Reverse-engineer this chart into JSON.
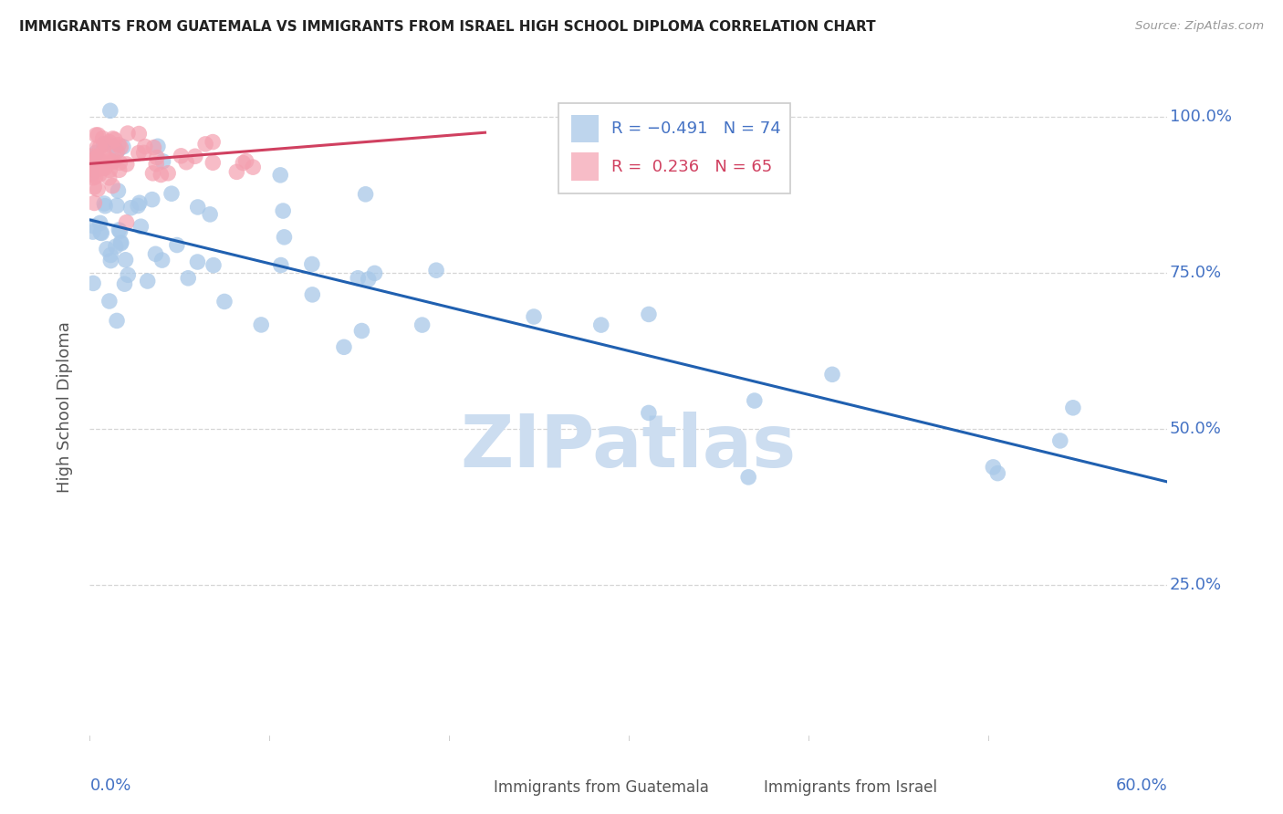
{
  "title": "IMMIGRANTS FROM GUATEMALA VS IMMIGRANTS FROM ISRAEL HIGH SCHOOL DIPLOMA CORRELATION CHART",
  "source": "Source: ZipAtlas.com",
  "ylabel": "High School Diploma",
  "xlim": [
    0.0,
    0.6
  ],
  "ylim": [
    0.0,
    1.07
  ],
  "ytick_vals": [
    0.25,
    0.5,
    0.75,
    1.0
  ],
  "ytick_labels": [
    "25.0%",
    "50.0%",
    "75.0%",
    "100.0%"
  ],
  "blue_color": "#a8c8e8",
  "pink_color": "#f4a0b0",
  "blue_line_color": "#2060b0",
  "pink_line_color": "#d04060",
  "watermark": "ZIPatlas",
  "watermark_color": "#ccddf0",
  "grid_color": "#cccccc",
  "title_color": "#222222",
  "axis_label_color": "#4472c4",
  "blue_trend_x0": 0.0,
  "blue_trend_y0": 0.835,
  "blue_trend_x1": 0.6,
  "blue_trend_y1": 0.415,
  "pink_trend_x0": 0.0,
  "pink_trend_y0": 0.925,
  "pink_trend_x1": 0.22,
  "pink_trend_y1": 0.975
}
